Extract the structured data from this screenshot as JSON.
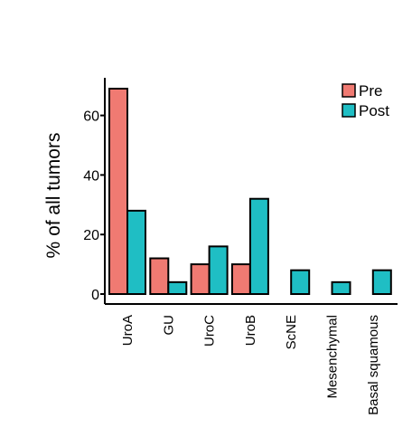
{
  "chart_data": {
    "type": "bar",
    "title": "",
    "xlabel": "",
    "ylabel": "% of all tumors",
    "ylim": [
      0,
      70
    ],
    "yticks": [
      0,
      20,
      40,
      60
    ],
    "categories": [
      "UroA",
      "GU",
      "UroC",
      "UroB",
      "ScNE",
      "Mesenchymal",
      "Basal squamous"
    ],
    "series": [
      {
        "name": "Pre",
        "color": "#F07A72",
        "values": [
          69,
          12,
          10,
          10,
          0,
          0,
          0
        ]
      },
      {
        "name": "Post",
        "color": "#1FBEC4",
        "values": [
          28,
          4,
          16,
          32,
          8,
          4,
          8
        ]
      }
    ],
    "legend_position": "top-right",
    "grid": false
  }
}
